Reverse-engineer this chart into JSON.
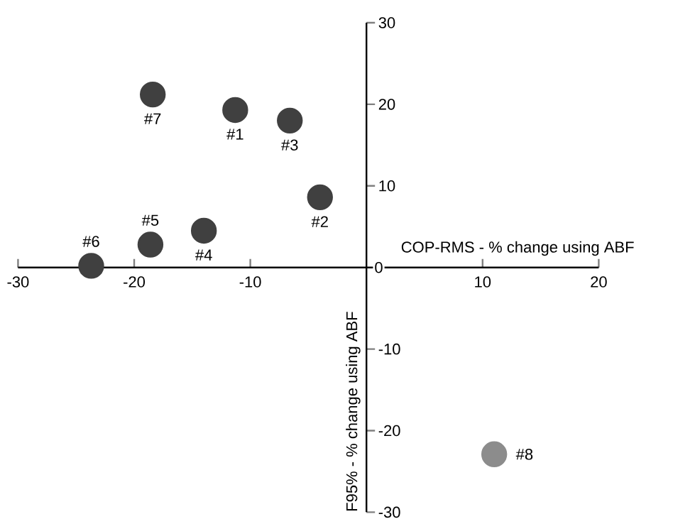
{
  "chart_data": {
    "type": "scatter",
    "xlabel": "COP-RMS - % change using ABF",
    "ylabel": "F95% - % change using ABF",
    "xlim": [
      -30,
      20
    ],
    "ylim": [
      -30,
      30
    ],
    "xticks": [
      -30,
      -20,
      -10,
      10,
      20
    ],
    "yticks": [
      -30,
      -20,
      -10,
      {
        "value": 0,
        "label": "0"
      },
      10,
      20,
      30
    ],
    "marker": "circle",
    "series": [
      {
        "color": "#404040",
        "x": [
          -11.3,
          -4.0,
          -6.6,
          -14.0,
          -18.6,
          -23.7,
          -18.4
        ],
        "values": [
          19.3,
          8.6,
          18.0,
          4.5,
          2.8,
          0.2,
          21.2
        ]
      },
      {
        "color": "#8c8c8c",
        "x": [
          11.0
        ],
        "values": [
          -22.9
        ]
      }
    ],
    "annotations": [
      {
        "text": "#1",
        "x": -11.3,
        "y": 19.3
      },
      {
        "text": "#2",
        "x": -4.0,
        "y": 8.6
      },
      {
        "text": "#3",
        "x": -6.6,
        "y": 18.0
      },
      {
        "text": "#4",
        "x": -14.0,
        "y": 4.5
      },
      {
        "text": "#5",
        "x": -18.6,
        "y": 2.8
      },
      {
        "text": "#6",
        "x": -23.7,
        "y": 0.2
      },
      {
        "text": "#7",
        "x": -18.4,
        "y": 21.2
      },
      {
        "text": "#8",
        "x": 11.0,
        "y": -22.9
      }
    ]
  }
}
